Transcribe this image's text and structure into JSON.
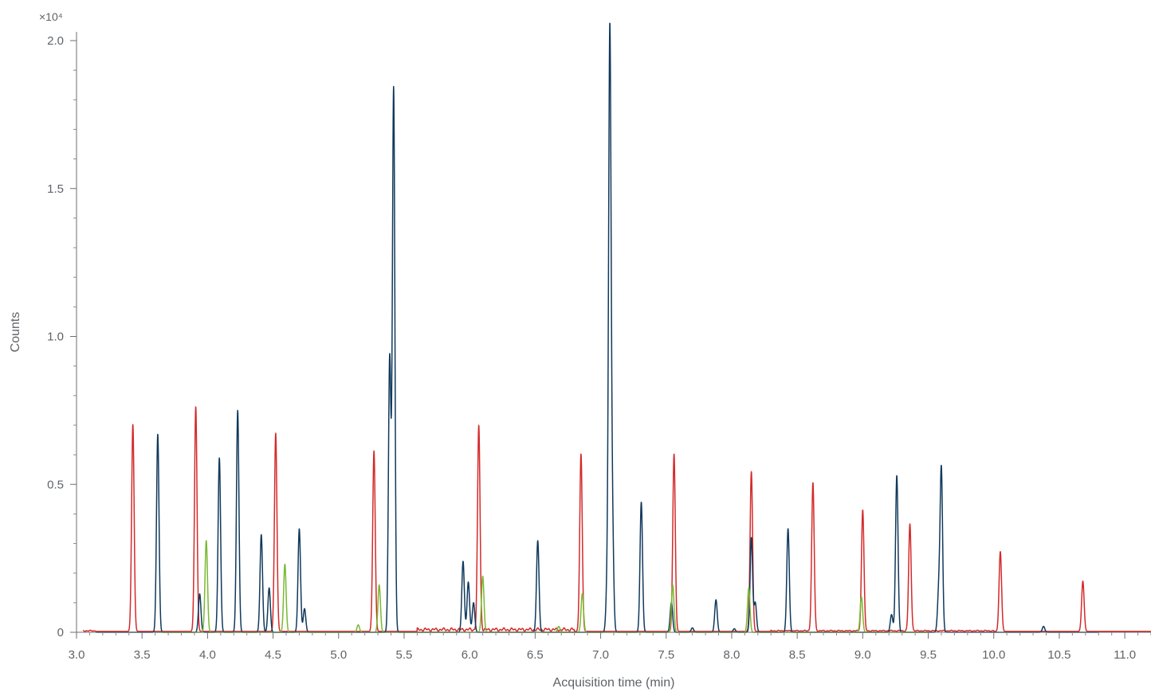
{
  "chart_data": {
    "type": "line",
    "xlabel": "Acquisition time (min)",
    "ylabel": "Counts",
    "y_multiplier": "×10⁴",
    "xlim": [
      3.0,
      11.2
    ],
    "ylim": [
      0,
      2.05
    ],
    "x_ticks": [
      "3.0",
      "3.5",
      "4.0",
      "4.5",
      "5.0",
      "5.5",
      "6.0",
      "6.5",
      "7.0",
      "7.5",
      "8.0",
      "8.5",
      "9.0",
      "9.5",
      "10.0",
      "10.5",
      "11.0"
    ],
    "y_ticks": [
      "0",
      "0.5",
      "1.0",
      "1.5",
      "2.0"
    ],
    "grid": false,
    "legend": "none",
    "series": [
      {
        "color": "#d42a2a",
        "x_range": [
          3.05,
          11.2
        ],
        "baseline": 0.003,
        "noise": [
          [
            3.05,
            3.15,
            0.004
          ],
          [
            5.6,
            6.8,
            0.012
          ],
          [
            8.3,
            10.0,
            0.004
          ]
        ],
        "peaks": [
          {
            "x": 3.43,
            "y": 0.7
          },
          {
            "x": 3.91,
            "y": 0.76
          },
          {
            "x": 4.52,
            "y": 0.67
          },
          {
            "x": 5.27,
            "y": 0.61
          },
          {
            "x": 6.07,
            "y": 0.69
          },
          {
            "x": 6.85,
            "y": 0.6
          },
          {
            "x": 7.56,
            "y": 0.6
          },
          {
            "x": 8.15,
            "y": 0.54
          },
          {
            "x": 8.62,
            "y": 0.5
          },
          {
            "x": 9.0,
            "y": 0.41
          },
          {
            "x": 9.36,
            "y": 0.36
          },
          {
            "x": 10.05,
            "y": 0.27
          },
          {
            "x": 10.68,
            "y": 0.17
          }
        ]
      },
      {
        "color": "#11395c",
        "x_range": [
          3.15,
          10.8
        ],
        "baseline": 0.0,
        "noise": [],
        "peaks": [
          {
            "x": 3.62,
            "y": 0.67
          },
          {
            "x": 3.94,
            "y": 0.13
          },
          {
            "x": 4.09,
            "y": 0.59
          },
          {
            "x": 4.23,
            "y": 0.75
          },
          {
            "x": 4.41,
            "y": 0.33
          },
          {
            "x": 4.47,
            "y": 0.15
          },
          {
            "x": 4.7,
            "y": 0.35
          },
          {
            "x": 4.74,
            "y": 0.08
          },
          {
            "x": 5.39,
            "y": 0.93
          },
          {
            "x": 5.42,
            "y": 1.84
          },
          {
            "x": 5.95,
            "y": 0.24
          },
          {
            "x": 5.99,
            "y": 0.17
          },
          {
            "x": 6.03,
            "y": 0.1
          },
          {
            "x": 6.52,
            "y": 0.31
          },
          {
            "x": 7.05,
            "y": 0.15
          },
          {
            "x": 7.07,
            "y": 2.01
          },
          {
            "x": 7.09,
            "y": 0.34
          },
          {
            "x": 7.31,
            "y": 0.44
          },
          {
            "x": 7.54,
            "y": 0.1
          },
          {
            "x": 7.7,
            "y": 0.015
          },
          {
            "x": 7.88,
            "y": 0.11
          },
          {
            "x": 8.02,
            "y": 0.012
          },
          {
            "x": 8.15,
            "y": 0.32
          },
          {
            "x": 8.18,
            "y": 0.1
          },
          {
            "x": 8.43,
            "y": 0.35
          },
          {
            "x": 9.22,
            "y": 0.06
          },
          {
            "x": 9.26,
            "y": 0.53
          },
          {
            "x": 9.58,
            "y": 0.13
          },
          {
            "x": 9.6,
            "y": 0.55
          },
          {
            "x": 10.38,
            "y": 0.02
          }
        ]
      },
      {
        "color": "#7ab833",
        "x_range": [
          3.6,
          9.5
        ],
        "baseline": 0.0,
        "noise": [],
        "peaks": [
          {
            "x": 3.99,
            "y": 0.31
          },
          {
            "x": 4.59,
            "y": 0.23
          },
          {
            "x": 5.15,
            "y": 0.025
          },
          {
            "x": 5.31,
            "y": 0.16
          },
          {
            "x": 6.1,
            "y": 0.19
          },
          {
            "x": 6.68,
            "y": 0.02
          },
          {
            "x": 6.86,
            "y": 0.13
          },
          {
            "x": 7.55,
            "y": 0.16
          },
          {
            "x": 8.13,
            "y": 0.15
          },
          {
            "x": 8.99,
            "y": 0.12
          }
        ]
      }
    ]
  }
}
